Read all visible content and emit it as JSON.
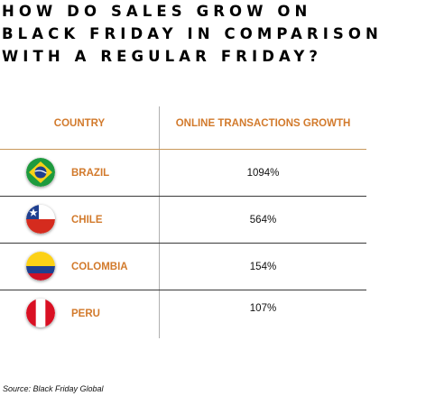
{
  "title_lines": [
    "HOW DO SALES GROW ON",
    "BLACK FRIDAY IN COMPARISON",
    "WITH A REGULAR FRIDAY?"
  ],
  "table": {
    "headers": {
      "country": "COUNTRY",
      "growth": "ONLINE TRANSACTIONS GROWTH"
    },
    "rows": [
      {
        "country": "BRAZIL",
        "growth": "1094%",
        "flag_icon": "brazil-flag-icon"
      },
      {
        "country": "CHILE",
        "growth": "564%",
        "flag_icon": "chile-flag-icon"
      },
      {
        "country": "COLOMBIA",
        "growth": "154%",
        "flag_icon": "colombia-flag-icon"
      },
      {
        "country": "PERU",
        "growth": "107%",
        "flag_icon": "peru-flag-icon"
      }
    ]
  },
  "source": "Source: Black Friday Global",
  "colors": {
    "accent": "#d27a2c",
    "text": "#111111",
    "rule": "#3a3a3a"
  },
  "chart_data": {
    "type": "table",
    "title": "HOW DO SALES GROW ON BLACK FRIDAY IN COMPARISON WITH A REGULAR FRIDAY?",
    "columns": [
      "COUNTRY",
      "ONLINE TRANSACTIONS GROWTH"
    ],
    "categories": [
      "BRAZIL",
      "CHILE",
      "COLOMBIA",
      "PERU"
    ],
    "values": [
      1094,
      564,
      154,
      107
    ],
    "unit": "%"
  }
}
